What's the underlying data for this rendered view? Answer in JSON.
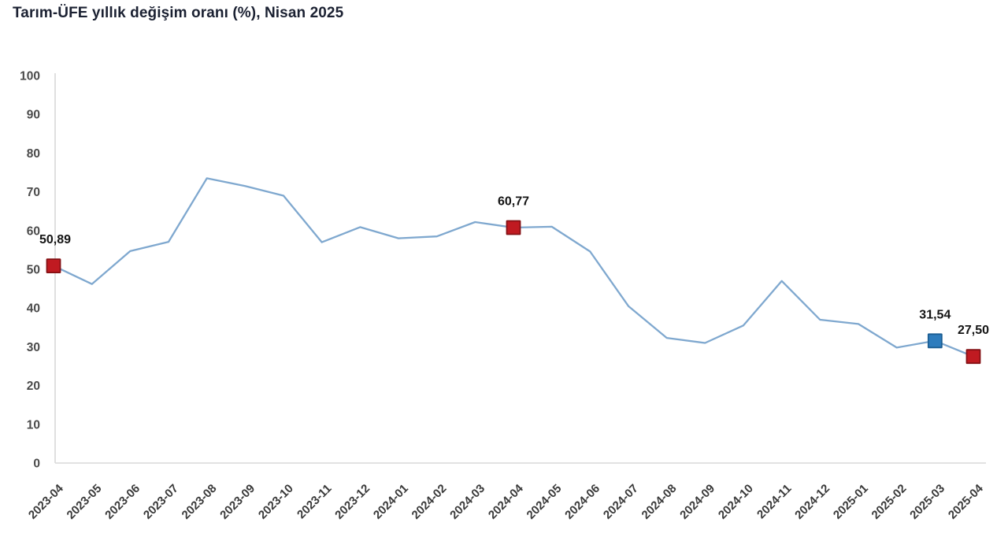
{
  "header": {
    "title": "Tarım-ÜFE yıllık değişim oranı (%), Nisan 2025"
  },
  "chart_data": {
    "type": "line",
    "title": "Tarım-ÜFE yıllık değişim oranı (%), Nisan 2025",
    "xlabel": "",
    "ylabel": "",
    "ylim": [
      0,
      100
    ],
    "ytick_step": 10,
    "grid": "off",
    "legend": "none",
    "categories": [
      "2023-04",
      "2023-05",
      "2023-06",
      "2023-07",
      "2023-08",
      "2023-09",
      "2023-10",
      "2023-11",
      "2023-12",
      "2024-01",
      "2024-02",
      "2024-03",
      "2024-04",
      "2024-05",
      "2024-06",
      "2024-07",
      "2024-08",
      "2024-09",
      "2024-10",
      "2024-11",
      "2024-12",
      "2025-01",
      "2025-02",
      "2025-03",
      "2025-04"
    ],
    "series": [
      {
        "name": "Tarım-ÜFE yıllık değişim oranı (%)",
        "values": [
          50.89,
          46.2,
          54.7,
          57.1,
          73.5,
          71.5,
          69.0,
          57.0,
          60.9,
          58.0,
          58.5,
          62.2,
          60.77,
          61.0,
          54.6,
          40.5,
          32.3,
          31.0,
          35.5,
          47.0,
          37.0,
          35.9,
          29.8,
          31.54,
          27.5
        ]
      }
    ],
    "highlighted_points": [
      {
        "category": "2023-04",
        "index": 0,
        "value": 50.89,
        "label": "50,89",
        "marker": "red",
        "label_anchor": "left"
      },
      {
        "category": "2024-04",
        "index": 12,
        "value": 60.77,
        "label": "60,77",
        "marker": "red",
        "label_anchor": "center"
      },
      {
        "category": "2025-03",
        "index": 23,
        "value": 31.54,
        "label": "31,54",
        "marker": "blue",
        "label_anchor": "center"
      },
      {
        "category": "2025-04",
        "index": 24,
        "value": 27.5,
        "label": "27,50",
        "marker": "red",
        "label_anchor": "center"
      }
    ],
    "colors": {
      "line": "#7fa8cf",
      "marker_red_fill": "#c01a21",
      "marker_red_border": "#841014",
      "marker_blue_fill": "#2e7cbd",
      "marker_blue_border": "#1c5e93",
      "axis": "#d9d9d9",
      "tick_label": "#4a4a4a",
      "point_label": "#141414",
      "title": "#1b2132"
    }
  }
}
